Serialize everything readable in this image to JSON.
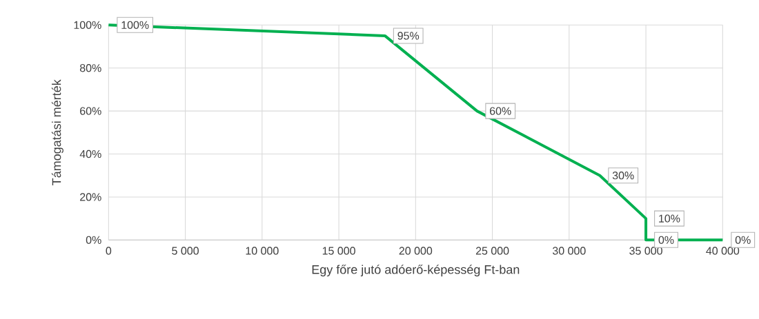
{
  "chart_data": {
    "type": "line",
    "xlabel": "Egy főre jutó adóerő-képesség Ft-ban",
    "ylabel": "Támogatási mérték",
    "x": [
      0,
      18000,
      24000,
      32000,
      35000,
      35000,
      40000
    ],
    "values": [
      100,
      95,
      60,
      30,
      10,
      0,
      0
    ],
    "value_labels": [
      "100%",
      "95%",
      "60%",
      "30%",
      "10%",
      "0%",
      "0%"
    ],
    "color": "#00b050",
    "marker": "none",
    "line_style": "solid",
    "grid": true,
    "xlim": [
      0,
      40000
    ],
    "ylim": [
      0,
      100
    ],
    "xticks": [
      0,
      {
        "value": 5000,
        "label": "5 000"
      },
      {
        "value": 10000,
        "label": "10 000"
      },
      {
        "value": 15000,
        "label": "15 000"
      },
      {
        "value": 20000,
        "label": "20 000"
      },
      {
        "value": 25000,
        "label": "25 000"
      },
      {
        "value": 30000,
        "label": "30 000"
      },
      {
        "value": 35000,
        "label": "35 000"
      },
      {
        "value": 40000,
        "label": "40 000"
      }
    ],
    "yticks": [
      {
        "value": 0,
        "label": "0%"
      },
      {
        "value": 20,
        "label": "20%"
      },
      {
        "value": 40,
        "label": "40%"
      },
      {
        "value": 60,
        "label": "60%"
      },
      {
        "value": 80,
        "label": "80%"
      },
      {
        "value": 100,
        "label": "100%"
      }
    ]
  }
}
